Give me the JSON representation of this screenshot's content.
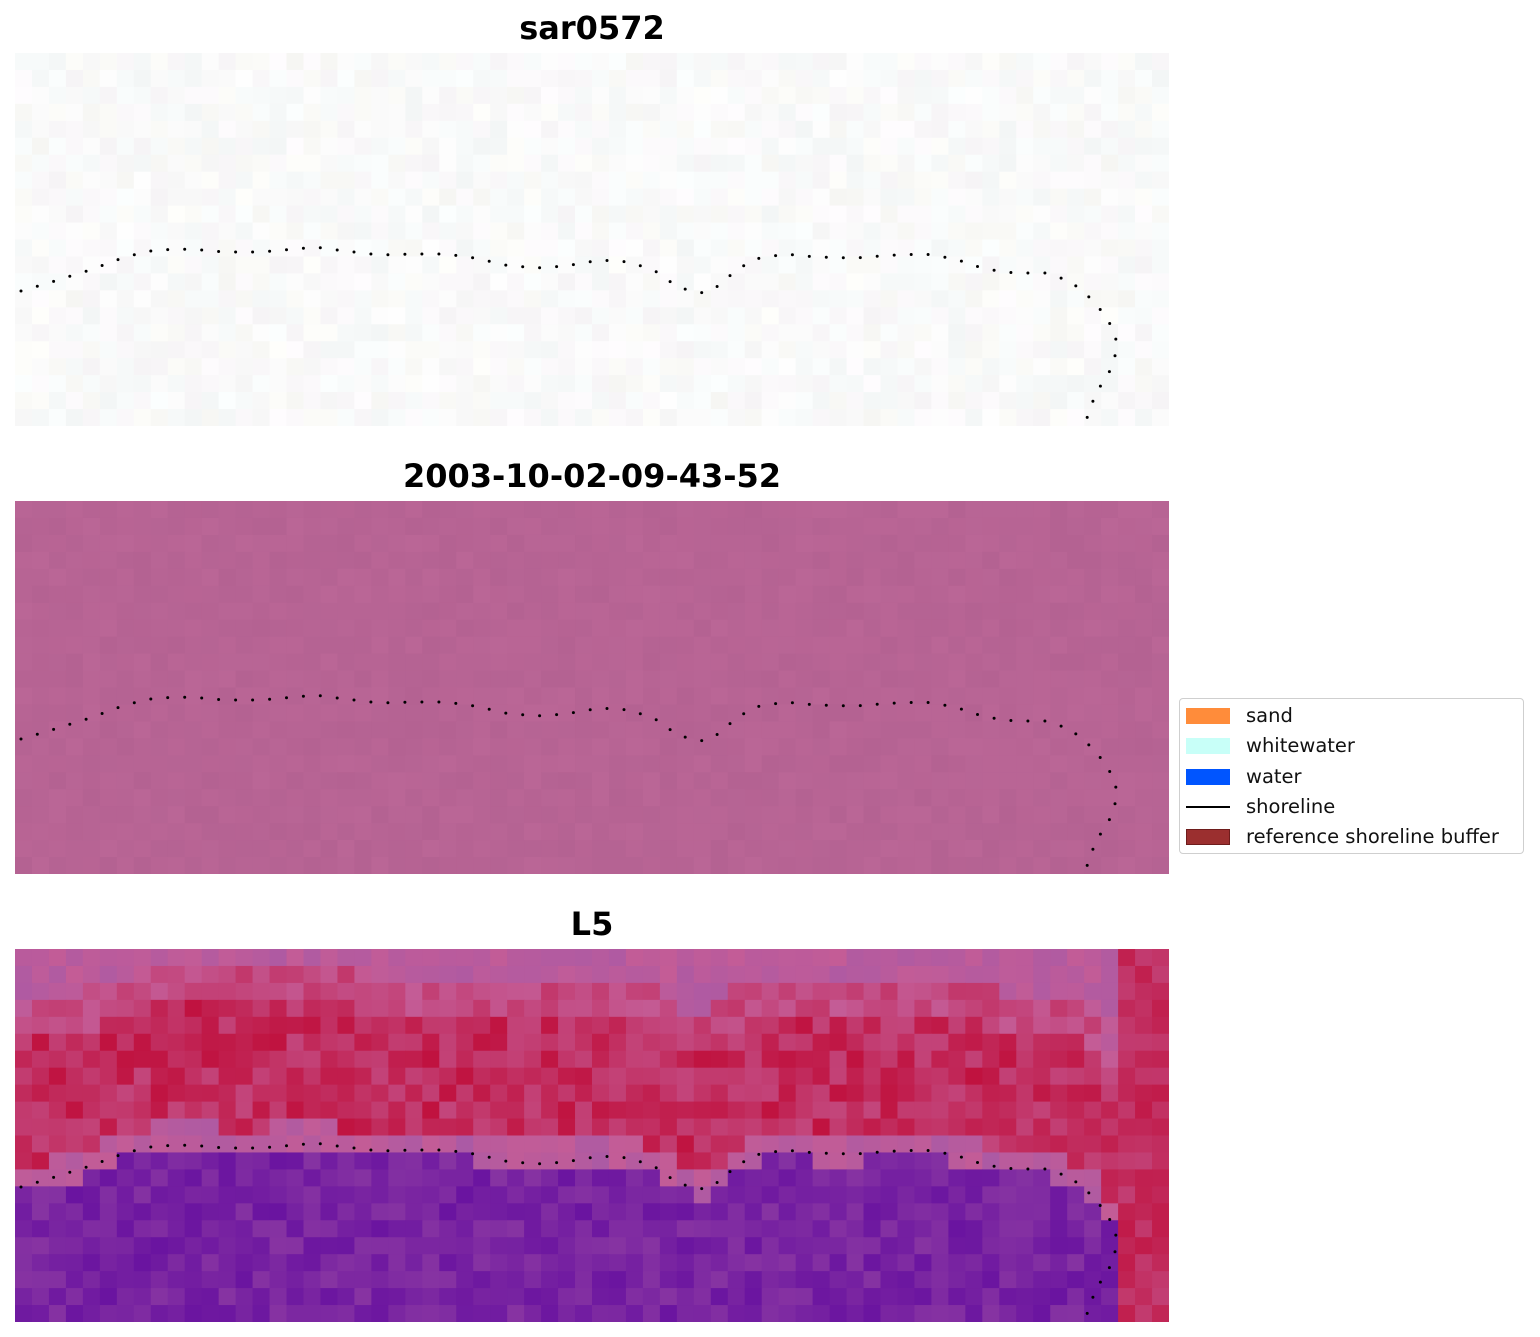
{
  "panels": [
    {
      "title": "sar0572",
      "style": "near-white"
    },
    {
      "title": "2003-10-02-09-43-52",
      "style": "flat-pink"
    },
    {
      "title": "L5",
      "style": "red-purple"
    }
  ],
  "legend": {
    "items": [
      {
        "label": "sand",
        "color": "#ff8c3a",
        "kind": "patch"
      },
      {
        "label": "whitewater",
        "color": "#c8fff8",
        "kind": "patch"
      },
      {
        "label": "water",
        "color": "#0055ff",
        "kind": "patch"
      },
      {
        "label": "shoreline",
        "color": "#000000",
        "kind": "line"
      },
      {
        "label": "reference shoreline buffer",
        "color": "#9b2f2f",
        "kind": "patch"
      }
    ]
  },
  "colors": {
    "flat_pink": "#b76494",
    "red": "#c0123f",
    "purple": "#6a14a0",
    "shoreline_dots": "#000000"
  }
}
